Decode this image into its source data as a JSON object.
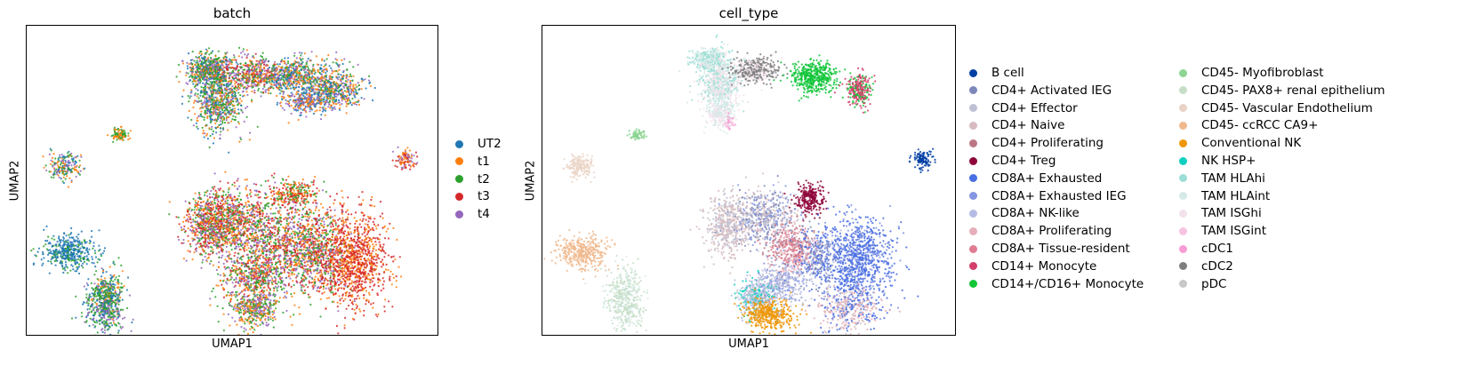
{
  "chart_data": [
    {
      "type": "scatter",
      "title": "batch",
      "xlabel": "UMAP1",
      "ylabel": "UMAP2",
      "legend_position": "right",
      "series": [
        {
          "name": "UT2",
          "color": "#1f77b4"
        },
        {
          "name": "t1",
          "color": "#ff7f0e"
        },
        {
          "name": "t2",
          "color": "#2ca02c"
        },
        {
          "name": "t3",
          "color": "#d62728"
        },
        {
          "name": "t4",
          "color": "#9467bd"
        }
      ],
      "grid": false
    },
    {
      "type": "scatter",
      "title": "cell_type",
      "xlabel": "UMAP1",
      "ylabel": "UMAP2",
      "legend_position": "right",
      "series": [
        {
          "name": "B cell",
          "color": "#023fa5"
        },
        {
          "name": "CD4+ Activated IEG",
          "color": "#7d87b9"
        },
        {
          "name": "CD4+ Effector",
          "color": "#bec1d4"
        },
        {
          "name": "CD4+ Naive",
          "color": "#d6bcc0"
        },
        {
          "name": "CD4+ Proliferating",
          "color": "#bb7784"
        },
        {
          "name": "CD4+ Treg",
          "color": "#8e063b"
        },
        {
          "name": "CD8A+ Exhausted",
          "color": "#4a6fe3"
        },
        {
          "name": "CD8A+ Exhausted IEG",
          "color": "#8595e1"
        },
        {
          "name": "CD8A+ NK-like",
          "color": "#b5bbe3"
        },
        {
          "name": "CD8A+ Proliferating",
          "color": "#e6afb9"
        },
        {
          "name": "CD8A+ Tissue-resident",
          "color": "#e07b91"
        },
        {
          "name": "CD14+ Monocyte",
          "color": "#d33f6a"
        },
        {
          "name": "CD14+/CD16+ Monocyte",
          "color": "#11c638"
        },
        {
          "name": "CD45- Myofibroblast",
          "color": "#8dd593"
        },
        {
          "name": "CD45- PAX8+ renal epithelium",
          "color": "#c6dec7"
        },
        {
          "name": "CD45- Vascular Endothelium",
          "color": "#ead3c6"
        },
        {
          "name": "CD45- ccRCC CA9+",
          "color": "#f0b98d"
        },
        {
          "name": "Conventional NK",
          "color": "#ef9708"
        },
        {
          "name": "NK HSP+",
          "color": "#0fcfc0"
        },
        {
          "name": "TAM HLAhi",
          "color": "#9cded6"
        },
        {
          "name": "TAM HLAint",
          "color": "#d5eae7"
        },
        {
          "name": "TAM ISGhi",
          "color": "#f3e1eb"
        },
        {
          "name": "TAM ISGint",
          "color": "#f6c4e1"
        },
        {
          "name": "cDC1",
          "color": "#f79cd4"
        },
        {
          "name": "cDC2",
          "color": "#7f7f7f"
        },
        {
          "name": "pDC",
          "color": "#c7c7c7"
        }
      ],
      "grid": false
    }
  ]
}
